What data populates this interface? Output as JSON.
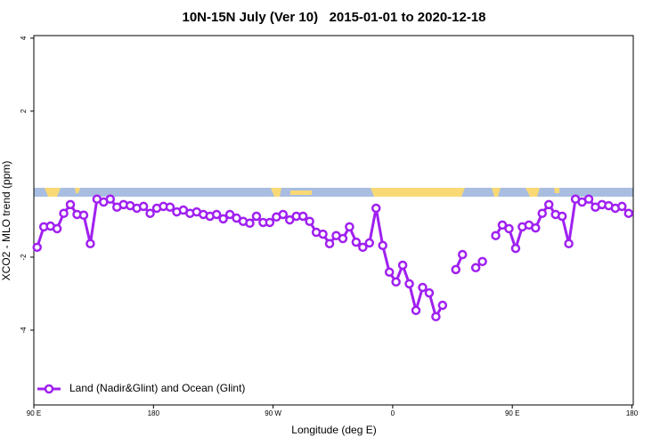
{
  "chart_data": {
    "type": "line",
    "title": "10N-15N July (Ver 10)   2015-01-01 to 2020-12-18",
    "x_label": "Longitude (deg E)",
    "y_label": "XCO2 - MLO trend (ppm)",
    "xlim": [
      90,
      541
    ],
    "ylim": [
      -6.05,
      4.07
    ],
    "xticks": [
      {
        "value": 90,
        "label": "90 E"
      },
      180,
      {
        "value": 270,
        "label": "90 W"
      },
      {
        "value": 360,
        "label": "0"
      },
      {
        "value": 450,
        "label": "90 E"
      },
      {
        "value": 540,
        "label": "180"
      }
    ],
    "yticks": [
      -4,
      -2,
      2,
      4
    ],
    "legend": "bottom-left",
    "x": [
      92.5,
      97.5,
      102.5,
      107.5,
      112.5,
      117.5,
      122.5,
      127.5,
      132.5,
      137.5,
      142.5,
      147.5,
      152.5,
      157.5,
      162.5,
      167.5,
      172.5,
      177.5,
      182.5,
      187.5,
      192.5,
      197.5,
      202.5,
      207.5,
      212.5,
      217.5,
      222.5,
      227.5,
      232.5,
      237.5,
      242.5,
      247.5,
      252.5,
      257.5,
      262.5,
      267.5,
      272.5,
      277.5,
      282.5,
      287.5,
      292.5,
      297.5,
      302.5,
      307.5,
      312.5,
      317.5,
      322.5,
      327.5,
      332.5,
      337.5,
      342.5,
      347.5,
      352.5,
      357.5,
      362.5,
      367.5,
      372.5,
      377.5,
      382.5,
      387.5,
      392.5,
      397.5,
      402.5,
      407.5,
      412.5,
      417.5,
      422.5,
      427.5,
      432.5,
      437.5,
      442.5,
      447.5,
      452.5,
      457.5,
      462.5,
      467.5,
      472.5,
      477.5,
      482.5,
      487.5,
      492.5,
      497.5,
      502.5,
      507.5,
      512.5,
      517.5,
      522.5,
      527.5,
      532.5,
      537.5
    ],
    "series": [
      {
        "name": "Land (Nadir&Glint) and Ocean (Glint)",
        "color": "#a020f0",
        "values": [
          -1.73,
          -1.17,
          -1.15,
          -1.22,
          -0.8,
          -0.56,
          -0.83,
          -0.85,
          -1.63,
          -0.41,
          -0.49,
          -0.41,
          -0.63,
          -0.56,
          -0.59,
          -0.66,
          -0.61,
          -0.8,
          -0.66,
          -0.61,
          -0.63,
          -0.76,
          -0.71,
          -0.8,
          -0.76,
          -0.83,
          -0.88,
          -0.83,
          -0.95,
          -0.83,
          -0.93,
          -1.02,
          -1.07,
          -0.88,
          -1.05,
          -1.05,
          -0.9,
          -0.83,
          -0.98,
          -0.88,
          -0.88,
          -1.02,
          -1.32,
          -1.37,
          -1.63,
          -1.41,
          -1.49,
          -1.17,
          -1.59,
          -1.73,
          -1.61,
          -0.66,
          -1.68,
          -2.41,
          -2.68,
          -2.22,
          -2.73,
          -3.46,
          -2.83,
          -2.98,
          -3.63,
          -3.32,
          null,
          -2.34,
          -1.93,
          null,
          -2.29,
          -2.12,
          null,
          -1.41,
          -1.12,
          -1.22,
          -1.76,
          -1.17,
          -1.12,
          -1.2,
          -0.8,
          -0.56,
          -0.83,
          -0.88,
          -1.63,
          -0.41,
          -0.49,
          -0.41,
          -0.63,
          -0.56,
          -0.59,
          -0.66,
          -0.61,
          -0.8
        ]
      }
    ]
  }
}
